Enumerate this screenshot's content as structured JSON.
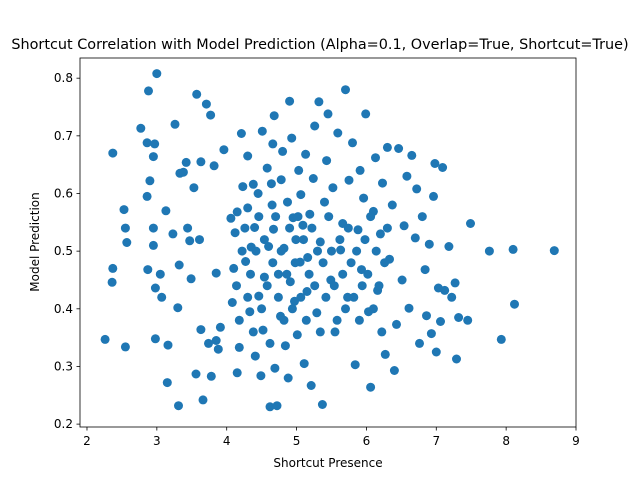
{
  "chart_data": {
    "type": "scatter",
    "title": "Shortcut Correlation with Model Prediction (Alpha=0.1, Overlap=True, Shortcut=True)",
    "xlabel": "Shortcut Presence",
    "ylabel": "Model Prediction",
    "xlim": [
      1.9,
      9.0
    ],
    "ylim": [
      0.195,
      0.835
    ],
    "xticks": [
      2,
      3,
      4,
      5,
      6,
      7,
      8,
      9
    ],
    "yticks": [
      0.2,
      0.3,
      0.4,
      0.5,
      0.6,
      0.7,
      0.8
    ],
    "grid": false,
    "legend": "none",
    "marker_color": "#1f77b4",
    "series": [
      {
        "points": [
          [
            2.26,
            0.347
          ],
          [
            2.37,
            0.67
          ],
          [
            2.37,
            0.47
          ],
          [
            2.36,
            0.446
          ],
          [
            2.53,
            0.572
          ],
          [
            2.55,
            0.334
          ],
          [
            2.55,
            0.54
          ],
          [
            2.57,
            0.515
          ],
          [
            2.77,
            0.713
          ],
          [
            2.86,
            0.688
          ],
          [
            2.88,
            0.778
          ],
          [
            2.86,
            0.595
          ],
          [
            2.87,
            0.468
          ],
          [
            2.9,
            0.622
          ],
          [
            2.95,
            0.664
          ],
          [
            2.95,
            0.51
          ],
          [
            2.95,
            0.54
          ],
          [
            2.97,
            0.686
          ],
          [
            2.98,
            0.436
          ],
          [
            2.98,
            0.348
          ],
          [
            3.0,
            0.808
          ],
          [
            3.05,
            0.46
          ],
          [
            3.07,
            0.42
          ],
          [
            3.13,
            0.57
          ],
          [
            3.15,
            0.272
          ],
          [
            3.16,
            0.337
          ],
          [
            3.23,
            0.53
          ],
          [
            3.26,
            0.72
          ],
          [
            3.31,
            0.232
          ],
          [
            3.33,
            0.635
          ],
          [
            3.32,
            0.476
          ],
          [
            3.3,
            0.402
          ],
          [
            3.38,
            0.637
          ],
          [
            3.42,
            0.654
          ],
          [
            3.44,
            0.54
          ],
          [
            3.47,
            0.518
          ],
          [
            3.49,
            0.452
          ],
          [
            3.53,
            0.61
          ],
          [
            3.56,
            0.287
          ],
          [
            3.57,
            0.772
          ],
          [
            3.61,
            0.52
          ],
          [
            3.63,
            0.655
          ],
          [
            3.63,
            0.364
          ],
          [
            3.66,
            0.242
          ],
          [
            3.71,
            0.755
          ],
          [
            3.74,
            0.34
          ],
          [
            3.77,
            0.736
          ],
          [
            3.78,
            0.283
          ],
          [
            3.82,
            0.648
          ],
          [
            3.85,
            0.462
          ],
          [
            3.85,
            0.345
          ],
          [
            3.88,
            0.33
          ],
          [
            3.91,
            0.368
          ],
          [
            3.96,
            0.676
          ],
          [
            4.06,
            0.557
          ],
          [
            4.08,
            0.411
          ],
          [
            4.12,
            0.532
          ],
          [
            4.15,
            0.568
          ],
          [
            4.15,
            0.289
          ],
          [
            4.18,
            0.333
          ],
          [
            4.21,
            0.704
          ],
          [
            4.23,
            0.612
          ],
          [
            4.27,
            0.482
          ],
          [
            4.3,
            0.665
          ],
          [
            4.3,
            0.575
          ],
          [
            4.33,
            0.395
          ],
          [
            4.35,
            0.507
          ],
          [
            4.38,
            0.616
          ],
          [
            4.4,
            0.541
          ],
          [
            4.41,
            0.318
          ],
          [
            4.45,
            0.6
          ],
          [
            4.46,
            0.422
          ],
          [
            4.49,
            0.284
          ],
          [
            4.51,
            0.708
          ],
          [
            4.52,
            0.363
          ],
          [
            4.54,
            0.455
          ],
          [
            4.58,
            0.644
          ],
          [
            4.6,
            0.508
          ],
          [
            4.62,
            0.23
          ],
          [
            4.64,
            0.617
          ],
          [
            4.65,
            0.58
          ],
          [
            4.66,
            0.686
          ],
          [
            4.67,
            0.538
          ],
          [
            4.68,
            0.735
          ],
          [
            4.69,
            0.297
          ],
          [
            4.72,
            0.232
          ],
          [
            4.74,
            0.46
          ],
          [
            4.77,
            0.387
          ],
          [
            4.78,
            0.624
          ],
          [
            4.8,
            0.673
          ],
          [
            4.82,
            0.505
          ],
          [
            4.84,
            0.336
          ],
          [
            4.87,
            0.585
          ],
          [
            4.88,
            0.28
          ],
          [
            4.9,
            0.76
          ],
          [
            4.91,
            0.447
          ],
          [
            4.93,
            0.696
          ],
          [
            4.95,
            0.558
          ],
          [
            4.97,
            0.413
          ],
          [
            4.99,
            0.52
          ],
          [
            5.01,
            0.355
          ],
          [
            5.03,
            0.64
          ],
          [
            5.05,
            0.481
          ],
          [
            5.06,
            0.598
          ],
          [
            5.09,
            0.545
          ],
          [
            5.11,
            0.305
          ],
          [
            5.13,
            0.668
          ],
          [
            5.15,
            0.43
          ],
          [
            5.16,
            0.489
          ],
          [
            5.19,
            0.564
          ],
          [
            5.21,
            0.267
          ],
          [
            5.24,
            0.626
          ],
          [
            5.26,
            0.717
          ],
          [
            5.29,
            0.393
          ],
          [
            5.32,
            0.759
          ],
          [
            5.34,
            0.516
          ],
          [
            5.37,
            0.234
          ],
          [
            5.4,
            0.585
          ],
          [
            5.43,
            0.657
          ],
          [
            5.45,
            0.738
          ],
          [
            5.49,
            0.45
          ],
          [
            5.52,
            0.61
          ],
          [
            5.55,
            0.36
          ],
          [
            5.59,
            0.705
          ],
          [
            5.63,
            0.502
          ],
          [
            5.66,
            0.548
          ],
          [
            5.7,
            0.78
          ],
          [
            5.73,
            0.42
          ],
          [
            5.75,
            0.623
          ],
          [
            5.8,
            0.688
          ],
          [
            5.84,
            0.303
          ],
          [
            5.88,
            0.537
          ],
          [
            5.91,
            0.64
          ],
          [
            5.93,
            0.468
          ],
          [
            5.96,
            0.592
          ],
          [
            5.99,
            0.738
          ],
          [
            6.03,
            0.395
          ],
          [
            6.06,
            0.264
          ],
          [
            6.1,
            0.569
          ],
          [
            6.13,
            0.662
          ],
          [
            6.16,
            0.432
          ],
          [
            6.2,
            0.53
          ],
          [
            6.23,
            0.618
          ],
          [
            6.27,
            0.321
          ],
          [
            6.3,
            0.68
          ],
          [
            6.33,
            0.486
          ],
          [
            6.37,
            0.58
          ],
          [
            6.4,
            0.293
          ],
          [
            6.43,
            0.373
          ],
          [
            6.46,
            0.678
          ],
          [
            6.51,
            0.45
          ],
          [
            6.54,
            0.544
          ],
          [
            6.58,
            0.63
          ],
          [
            6.61,
            0.401
          ],
          [
            6.65,
            0.666
          ],
          [
            6.7,
            0.523
          ],
          [
            6.72,
            0.608
          ],
          [
            6.76,
            0.34
          ],
          [
            6.8,
            0.56
          ],
          [
            6.84,
            0.468
          ],
          [
            6.86,
            0.388
          ],
          [
            6.9,
            0.512
          ],
          [
            6.93,
            0.357
          ],
          [
            6.96,
            0.595
          ],
          [
            6.98,
            0.652
          ],
          [
            7.0,
            0.325
          ],
          [
            7.03,
            0.436
          ],
          [
            7.06,
            0.378
          ],
          [
            7.09,
            0.645
          ],
          [
            7.12,
            0.432
          ],
          [
            7.18,
            0.508
          ],
          [
            7.22,
            0.42
          ],
          [
            7.27,
            0.445
          ],
          [
            7.29,
            0.313
          ],
          [
            7.32,
            0.385
          ],
          [
            7.45,
            0.38
          ],
          [
            7.49,
            0.548
          ],
          [
            7.76,
            0.5
          ],
          [
            7.93,
            0.347
          ],
          [
            8.1,
            0.503
          ],
          [
            8.12,
            0.408
          ],
          [
            8.69,
            0.501
          ],
          [
            4.1,
            0.47
          ],
          [
            4.14,
            0.44
          ],
          [
            4.18,
            0.38
          ],
          [
            4.22,
            0.5
          ],
          [
            4.26,
            0.54
          ],
          [
            4.3,
            0.42
          ],
          [
            4.34,
            0.46
          ],
          [
            4.38,
            0.36
          ],
          [
            4.42,
            0.5
          ],
          [
            4.46,
            0.56
          ],
          [
            4.5,
            0.4
          ],
          [
            4.54,
            0.52
          ],
          [
            4.58,
            0.44
          ],
          [
            4.62,
            0.34
          ],
          [
            4.66,
            0.48
          ],
          [
            4.7,
            0.56
          ],
          [
            4.74,
            0.42
          ],
          [
            4.78,
            0.5
          ],
          [
            4.82,
            0.38
          ],
          [
            4.86,
            0.46
          ],
          [
            4.9,
            0.54
          ],
          [
            4.94,
            0.4
          ],
          [
            4.98,
            0.48
          ],
          [
            5.02,
            0.56
          ],
          [
            5.06,
            0.42
          ],
          [
            5.1,
            0.52
          ],
          [
            5.14,
            0.38
          ],
          [
            5.18,
            0.46
          ],
          [
            5.22,
            0.54
          ],
          [
            5.26,
            0.44
          ],
          [
            5.3,
            0.5
          ],
          [
            5.34,
            0.36
          ],
          [
            5.38,
            0.48
          ],
          [
            5.42,
            0.42
          ],
          [
            5.46,
            0.56
          ],
          [
            5.5,
            0.5
          ],
          [
            5.54,
            0.44
          ],
          [
            5.58,
            0.38
          ],
          [
            5.62,
            0.52
          ],
          [
            5.66,
            0.46
          ],
          [
            5.7,
            0.4
          ],
          [
            5.74,
            0.54
          ],
          [
            5.78,
            0.48
          ],
          [
            5.82,
            0.42
          ],
          [
            5.86,
            0.5
          ],
          [
            5.9,
            0.38
          ],
          [
            5.94,
            0.44
          ],
          [
            5.98,
            0.52
          ],
          [
            6.02,
            0.46
          ],
          [
            6.06,
            0.56
          ],
          [
            6.1,
            0.4
          ],
          [
            6.14,
            0.5
          ],
          [
            6.18,
            0.44
          ],
          [
            6.22,
            0.36
          ],
          [
            6.26,
            0.48
          ],
          [
            6.3,
            0.54
          ]
        ]
      }
    ]
  }
}
